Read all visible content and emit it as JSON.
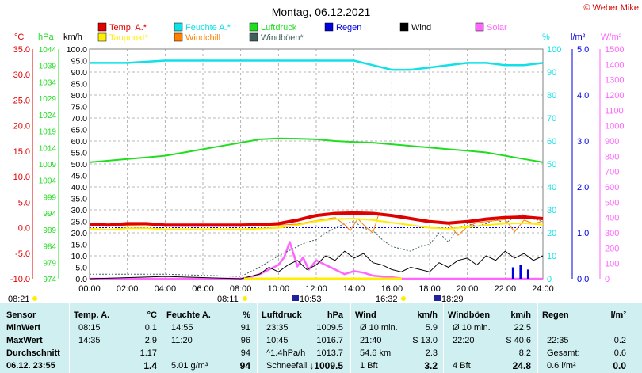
{
  "title": "Montag, 06.12.2021",
  "copyright": "© Weber Mike",
  "colors": {
    "temp": "#e00000",
    "feuchte": "#10e0e8",
    "luftdruck": "#20dd20",
    "regen": "#0000dd",
    "wind": "#000000",
    "solar": "#ff66ff",
    "taupunkt": "#ffee00",
    "windchill": "#ff8000",
    "windboeen": "#406060"
  },
  "legend": [
    {
      "name": "Temp. A.*",
      "color": "#e00000"
    },
    {
      "name": "Feuchte A.*",
      "color": "#10e0e8"
    },
    {
      "name": "Luftdruck",
      "color": "#20dd20"
    },
    {
      "name": "Regen",
      "color": "#0000dd"
    },
    {
      "name": "Wind",
      "color": "#000000"
    },
    {
      "name": "Solar",
      "color": "#ff66ff"
    },
    {
      "name": "Taupunkt*",
      "color": "#ffee00"
    },
    {
      "name": "Windchill",
      "color": "#ff8000"
    },
    {
      "name": "Windböen*",
      "color": "#406060"
    }
  ],
  "axis_units": {
    "temp": "°C",
    "pressure": "hPa",
    "wind": "km/h",
    "humidity": "%",
    "rain": "l/m²",
    "solar": "W/m²"
  },
  "sun": {
    "sunrise": "08:11",
    "sunset": "16:32",
    "moonrise": "10:53",
    "moonset": "18:29",
    "left_marker": "08:21"
  },
  "chart_data": {
    "type": "line",
    "x_ticks": [
      "00:00",
      "02:00",
      "04:00",
      "06:00",
      "08:00",
      "10:00",
      "12:00",
      "14:00",
      "16:00",
      "18:00",
      "20:00",
      "22:00",
      "24:00"
    ],
    "axes": {
      "temp": {
        "range": [
          -10,
          35
        ],
        "ticks": [
          "35.0",
          "30.0",
          "25.0",
          "20.0",
          "15.0",
          "10.0",
          "5.0",
          "0.0",
          "-5.0",
          "-10.0"
        ]
      },
      "pressure": {
        "range": [
          974,
          1044
        ],
        "ticks": [
          "1044",
          "1039",
          "1034",
          "1029",
          "1024",
          "1019",
          "1014",
          "1009",
          "1004",
          "999",
          "994",
          "989",
          "984",
          "979",
          "974"
        ]
      },
      "wind": {
        "range": [
          0,
          100
        ],
        "ticks": [
          "100.0",
          "95.0",
          "90.0",
          "85.0",
          "80.0",
          "75.0",
          "70.0",
          "65.0",
          "60.0",
          "55.0",
          "50.0",
          "45.0",
          "40.0",
          "35.0",
          "30.0",
          "25.0",
          "20.0",
          "15.0",
          "10.0",
          "5.0",
          "0.0"
        ]
      },
      "humidity": {
        "range": [
          0,
          100
        ],
        "ticks": [
          "100",
          "90",
          "80",
          "70",
          "60",
          "50",
          "40",
          "30",
          "20",
          "10",
          "0"
        ]
      },
      "rain": {
        "range": [
          0,
          5
        ],
        "ticks": [
          "5.0",
          "4.0",
          "3.0",
          "2.0",
          "1.0",
          "0.0"
        ]
      },
      "solar": {
        "range": [
          0,
          1500
        ],
        "ticks": [
          "1500",
          "1400",
          "1300",
          "1200",
          "1100",
          "1000",
          "900",
          "800",
          "700",
          "600",
          "500",
          "400",
          "300",
          "200",
          "100",
          "0"
        ]
      }
    },
    "series": [
      {
        "name": "Temp. A.*",
        "axis": "temp",
        "x": [
          0,
          1,
          2,
          3,
          4,
          5,
          6,
          7,
          8,
          9,
          10,
          11,
          12,
          13,
          14,
          15,
          16,
          17,
          18,
          19,
          20,
          21,
          22,
          23,
          24
        ],
        "y": [
          0.7,
          0.5,
          0.8,
          0.8,
          0.5,
          0.5,
          0.5,
          0.5,
          0.5,
          0.6,
          0.8,
          1.5,
          2.4,
          2.8,
          2.9,
          2.8,
          2.4,
          1.8,
          1.2,
          0.9,
          1.2,
          1.7,
          2.0,
          2.1,
          1.8
        ]
      },
      {
        "name": "Taupunkt*",
        "axis": "temp",
        "x": [
          0,
          1,
          2,
          3,
          4,
          5,
          6,
          7,
          8,
          9,
          10,
          11,
          12,
          13,
          14,
          15,
          16,
          17,
          18,
          19,
          20,
          21,
          22,
          23,
          24
        ],
        "y": [
          -0.2,
          -0.4,
          -0.1,
          -0.1,
          -0.3,
          -0.3,
          -0.3,
          -0.3,
          -0.3,
          -0.2,
          0.0,
          0.5,
          1.3,
          1.7,
          1.8,
          1.5,
          1.0,
          0.5,
          0.0,
          -0.2,
          0.1,
          0.5,
          0.8,
          0.9,
          0.6
        ]
      },
      {
        "name": "Feuchte A.*",
        "axis": "humidity",
        "x": [
          0,
          2,
          4,
          6,
          8,
          10,
          11.3,
          12,
          14,
          15,
          16,
          17,
          18,
          19,
          20,
          21,
          22,
          23,
          24
        ],
        "y": [
          94,
          94,
          95,
          95,
          95,
          95,
          95,
          95,
          95,
          93,
          91,
          91,
          92,
          93,
          94,
          94,
          93,
          93,
          94
        ]
      },
      {
        "name": "Luftdruck",
        "axis": "pressure",
        "x": [
          0,
          1,
          2,
          3,
          4,
          5,
          6,
          7,
          8,
          9,
          10,
          11,
          12,
          13,
          14,
          15,
          16,
          17,
          18,
          19,
          20,
          21,
          22,
          23,
          24
        ],
        "y": [
          1009.5,
          1010,
          1010.5,
          1011,
          1011.5,
          1012.5,
          1013.5,
          1014.5,
          1015.5,
          1016.5,
          1016.8,
          1016.7,
          1016.5,
          1016,
          1015.7,
          1015.5,
          1015,
          1014.5,
          1014,
          1013.5,
          1013,
          1012.5,
          1011.5,
          1010.5,
          1009.5
        ]
      },
      {
        "name": "Windchill",
        "axis": "temp",
        "x": [
          0,
          4,
          8,
          10,
          11,
          12,
          13,
          13.5,
          13.8,
          14.2,
          14.6,
          15,
          15.3,
          16,
          17,
          18,
          19,
          19.5,
          20,
          20.5,
          21,
          22,
          22.5,
          23,
          23.5,
          24
        ],
        "y": [
          0.5,
          0.3,
          0.3,
          0.5,
          0.7,
          1.4,
          2.0,
          0.6,
          -0.6,
          1.8,
          0.2,
          -1.0,
          2.6,
          2.3,
          1.7,
          1.1,
          0.8,
          -1.5,
          0.2,
          1.0,
          1.2,
          1.6,
          -0.8,
          1.5,
          0.8,
          1.3
        ]
      },
      {
        "name": "Wind",
        "axis": "wind",
        "x": [
          0,
          4,
          8,
          9,
          9.5,
          10,
          10.5,
          11,
          11.5,
          12,
          12.5,
          13,
          13.5,
          14,
          14.5,
          15,
          15.5,
          16,
          16.5,
          17,
          17.5,
          18,
          18.5,
          19,
          19.5,
          20,
          20.5,
          21,
          21.5,
          22,
          22.5,
          23,
          23.5,
          24
        ],
        "y": [
          0,
          1,
          0,
          2,
          5,
          3,
          6,
          8,
          4,
          6,
          10,
          8,
          12,
          9,
          11,
          7,
          6,
          4,
          3,
          5,
          4,
          3,
          7,
          5,
          8,
          9,
          6,
          10,
          8,
          12,
          9,
          11,
          8,
          10
        ]
      },
      {
        "name": "Windböen*",
        "axis": "wind",
        "x": [
          0,
          4,
          8,
          9,
          10,
          10.5,
          11,
          11.5,
          12,
          12.5,
          13,
          13.5,
          14,
          14.5,
          15,
          15.5,
          16,
          16.5,
          17,
          17.5,
          18,
          18.5,
          19,
          19.5,
          20,
          20.5,
          21,
          21.5,
          22,
          22.5,
          23,
          23.5,
          24
        ],
        "y": [
          2,
          2,
          1,
          5,
          10,
          12,
          14,
          16,
          17,
          20,
          22,
          24,
          25,
          22,
          21,
          17,
          14,
          13,
          12,
          14,
          15,
          20,
          16,
          22,
          24,
          23,
          24,
          26,
          24,
          27,
          28,
          26,
          25
        ]
      },
      {
        "name": "Solar",
        "axis": "solar",
        "x": [
          0,
          8,
          8.5,
          9,
          9.5,
          10,
          10.3,
          10.6,
          11,
          11.3,
          11.6,
          12,
          12.5,
          13,
          13.5,
          14,
          14.5,
          15,
          15.5,
          16,
          16.3,
          16.6,
          24
        ],
        "y": [
          0,
          0,
          10,
          30,
          60,
          90,
          140,
          240,
          80,
          140,
          60,
          120,
          90,
          60,
          30,
          50,
          40,
          20,
          15,
          10,
          5,
          0,
          0
        ]
      },
      {
        "name": "Regen",
        "axis": "rain",
        "x": [],
        "y": []
      }
    ],
    "xlabel": "",
    "ylabel": ""
  },
  "stats": {
    "columns": [
      {
        "header": "Sensor",
        "rows": [
          "MinWert",
          "MaxWert",
          "Durchschnitt",
          "06.12. 23:55"
        ]
      },
      {
        "header": "Temp. A.",
        "unit": "°C",
        "rows": [
          [
            "08:15",
            "0.1"
          ],
          [
            "14:35",
            "2.9"
          ],
          [
            "",
            "1.17"
          ],
          [
            "",
            "1.4"
          ]
        ]
      },
      {
        "header": "Feuchte A.",
        "unit": "%",
        "rows": [
          [
            "14:55",
            "91"
          ],
          [
            "11:20",
            "96"
          ],
          [
            "",
            "94"
          ],
          [
            "5.01 g/m³",
            "94"
          ]
        ]
      },
      {
        "header": "Luftdruck",
        "unit": "hPa",
        "rows": [
          [
            "23:35",
            "1009.5"
          ],
          [
            "10:45",
            "1016.7"
          ],
          [
            "^1.4hPa/h",
            "1013.7"
          ],
          [
            "Schneefall",
            "↓1009.5"
          ]
        ]
      },
      {
        "header": "Wind",
        "unit": "km/h",
        "rows": [
          [
            "Ø 10 min.",
            "5.9"
          ],
          [
            "21:40",
            "S 13.0"
          ],
          [
            "54.6 km",
            "2.3"
          ],
          [
            "1 Bft",
            "3.2"
          ]
        ]
      },
      {
        "header": "Windböen",
        "unit": "km/h",
        "rows": [
          [
            "Ø 10 min.",
            "22.5"
          ],
          [
            "22:20",
            "S 40.6"
          ],
          [
            "",
            "8.2"
          ],
          [
            "4 Bft",
            "24.8"
          ]
        ]
      },
      {
        "header": "Regen",
        "unit": "l/m²",
        "rows": [
          [
            "",
            ""
          ],
          [
            "22:35",
            "0.2"
          ],
          [
            "Gesamt:",
            "0.6"
          ],
          [
            "0.6 l/m²",
            "0.0"
          ]
        ]
      }
    ]
  }
}
